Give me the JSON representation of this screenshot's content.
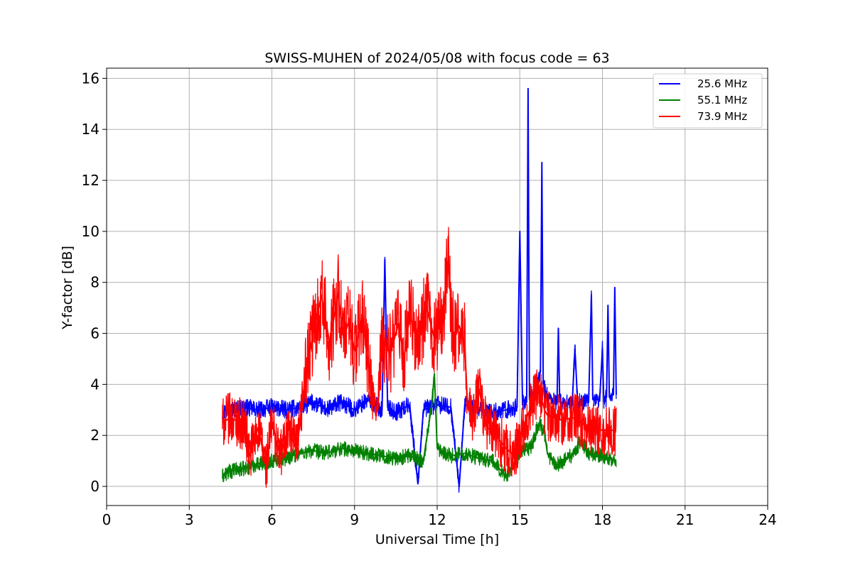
{
  "chart_data": {
    "type": "line",
    "title": "SWISS-MUHEN of 2024/05/08 with focus code = 63",
    "xlabel": "Universal Time [h]",
    "ylabel": "Y-factor [dB]",
    "xlim": [
      0,
      24
    ],
    "ylim": [
      -0.75,
      16.4
    ],
    "xticks": [
      0,
      3,
      6,
      9,
      12,
      15,
      18,
      21,
      24
    ],
    "yticks": [
      0,
      2,
      4,
      6,
      8,
      10,
      12,
      14,
      16
    ],
    "xtick_labels": [
      "0",
      "3",
      "6",
      "9",
      "12",
      "15",
      "18",
      "21",
      "24"
    ],
    "ytick_labels": [
      "0",
      "2",
      "4",
      "6",
      "8",
      "10",
      "12",
      "14",
      "16"
    ],
    "grid": true,
    "legend_position": "top-right",
    "series": [
      {
        "name": "25.6 MHz",
        "color": "#0000ff",
        "points": [
          [
            4.2,
            2.9
          ],
          [
            4.5,
            3.0
          ],
          [
            5.0,
            3.1
          ],
          [
            5.5,
            3.0
          ],
          [
            6.0,
            3.1
          ],
          [
            6.5,
            3.0
          ],
          [
            7.0,
            3.1
          ],
          [
            7.5,
            3.3
          ],
          [
            8.0,
            3.0
          ],
          [
            8.5,
            3.3
          ],
          [
            9.0,
            3.0
          ],
          [
            9.5,
            3.4
          ],
          [
            10.0,
            3.0
          ],
          [
            10.1,
            8.9
          ],
          [
            10.2,
            3.1
          ],
          [
            10.5,
            2.9
          ],
          [
            11.0,
            3.2
          ],
          [
            11.3,
            0.1
          ],
          [
            11.5,
            3.0
          ],
          [
            12.0,
            3.2
          ],
          [
            12.5,
            3.1
          ],
          [
            12.8,
            0.0
          ],
          [
            13.0,
            3.2
          ],
          [
            13.5,
            3.0
          ],
          [
            14.0,
            2.9
          ],
          [
            14.5,
            3.0
          ],
          [
            14.9,
            3.1
          ],
          [
            15.0,
            10.0
          ],
          [
            15.1,
            3.2
          ],
          [
            15.25,
            3.3
          ],
          [
            15.3,
            15.6
          ],
          [
            15.35,
            3.4
          ],
          [
            15.6,
            3.9
          ],
          [
            15.75,
            4.5
          ],
          [
            15.8,
            12.7
          ],
          [
            15.85,
            4.0
          ],
          [
            16.0,
            3.5
          ],
          [
            16.35,
            3.3
          ],
          [
            16.4,
            6.2
          ],
          [
            16.45,
            3.3
          ],
          [
            16.9,
            3.2
          ],
          [
            17.0,
            5.4
          ],
          [
            17.1,
            3.3
          ],
          [
            17.5,
            3.3
          ],
          [
            17.6,
            7.5
          ],
          [
            17.65,
            3.4
          ],
          [
            17.9,
            3.4
          ],
          [
            18.0,
            5.4
          ],
          [
            18.05,
            3.3
          ],
          [
            18.15,
            3.5
          ],
          [
            18.2,
            7.1
          ],
          [
            18.25,
            3.5
          ],
          [
            18.4,
            3.6
          ],
          [
            18.45,
            7.8
          ],
          [
            18.5,
            3.6
          ]
        ]
      },
      {
        "name": "55.1 MHz",
        "color": "#008000",
        "points": [
          [
            4.2,
            0.4
          ],
          [
            4.5,
            0.6
          ],
          [
            5.0,
            0.7
          ],
          [
            5.5,
            0.9
          ],
          [
            6.0,
            1.0
          ],
          [
            6.5,
            1.1
          ],
          [
            7.0,
            1.3
          ],
          [
            7.5,
            1.4
          ],
          [
            8.0,
            1.3
          ],
          [
            8.5,
            1.5
          ],
          [
            9.0,
            1.4
          ],
          [
            9.5,
            1.3
          ],
          [
            10.0,
            1.2
          ],
          [
            10.5,
            1.1
          ],
          [
            11.0,
            1.2
          ],
          [
            11.5,
            1.0
          ],
          [
            11.8,
            3.2
          ],
          [
            11.9,
            4.4
          ],
          [
            12.0,
            1.5
          ],
          [
            12.5,
            1.2
          ],
          [
            13.0,
            1.3
          ],
          [
            13.5,
            1.1
          ],
          [
            14.0,
            1.0
          ],
          [
            14.5,
            0.4
          ],
          [
            15.0,
            1.3
          ],
          [
            15.4,
            1.5
          ],
          [
            15.7,
            2.5
          ],
          [
            15.9,
            2.1
          ],
          [
            16.0,
            1.3
          ],
          [
            16.3,
            0.8
          ],
          [
            17.0,
            1.3
          ],
          [
            17.2,
            1.8
          ],
          [
            17.5,
            1.3
          ],
          [
            18.0,
            1.2
          ],
          [
            18.5,
            1.0
          ]
        ]
      },
      {
        "name": "73.9 MHz",
        "color": "#ff0000",
        "points": [
          [
            4.2,
            2.5
          ],
          [
            4.5,
            2.7
          ],
          [
            5.0,
            2.4
          ],
          [
            5.2,
            1.2
          ],
          [
            5.5,
            2.3
          ],
          [
            5.8,
            0.8
          ],
          [
            6.0,
            2.5
          ],
          [
            6.3,
            1.2
          ],
          [
            6.6,
            2.3
          ],
          [
            6.9,
            1.4
          ],
          [
            7.2,
            4.2
          ],
          [
            7.5,
            6.0
          ],
          [
            7.8,
            7.5
          ],
          [
            8.1,
            5.6
          ],
          [
            8.4,
            7.6
          ],
          [
            8.6,
            5.8
          ],
          [
            8.8,
            6.5
          ],
          [
            9.0,
            5.3
          ],
          [
            9.3,
            6.7
          ],
          [
            9.5,
            4.8
          ],
          [
            9.7,
            3.2
          ],
          [
            9.85,
            3.0
          ],
          [
            10.0,
            5.8
          ],
          [
            10.3,
            5.2
          ],
          [
            10.6,
            6.4
          ],
          [
            10.8,
            5.0
          ],
          [
            11.0,
            6.8
          ],
          [
            11.3,
            5.5
          ],
          [
            11.6,
            7.1
          ],
          [
            11.9,
            5.8
          ],
          [
            12.2,
            6.6
          ],
          [
            12.4,
            8.8
          ],
          [
            12.6,
            5.7
          ],
          [
            12.8,
            6.3
          ],
          [
            13.0,
            5.6
          ],
          [
            13.1,
            3.2
          ],
          [
            13.3,
            2.6
          ],
          [
            13.5,
            3.9
          ],
          [
            13.8,
            2.3
          ],
          [
            14.0,
            2.2
          ],
          [
            14.2,
            1.9
          ],
          [
            14.5,
            1.5
          ],
          [
            14.8,
            1.2
          ],
          [
            15.1,
            2.3
          ],
          [
            15.4,
            3.1
          ],
          [
            15.7,
            3.8
          ],
          [
            15.9,
            3.0
          ],
          [
            16.0,
            2.8
          ],
          [
            16.5,
            2.6
          ],
          [
            17.0,
            2.7
          ],
          [
            17.5,
            2.3
          ],
          [
            18.0,
            2.2
          ],
          [
            18.5,
            2.2
          ]
        ]
      }
    ]
  }
}
